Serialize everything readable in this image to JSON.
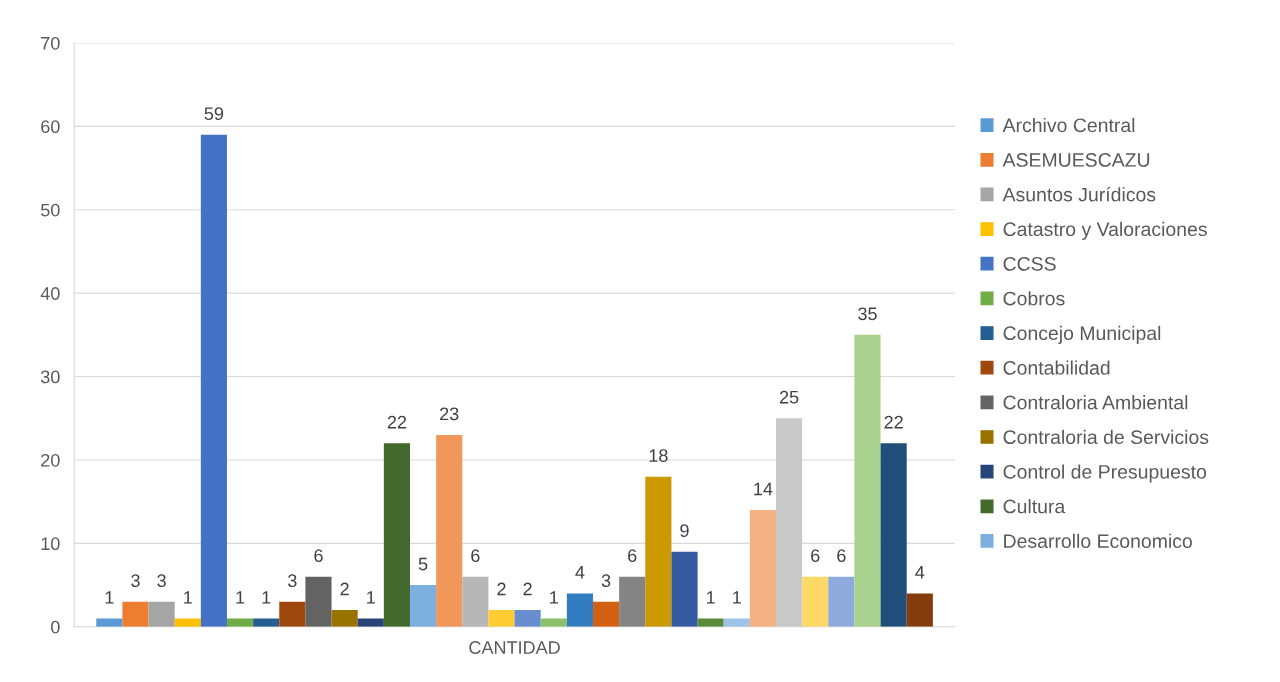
{
  "chart_data": {
    "type": "bar",
    "categories": [
      "CANTIDAD"
    ],
    "ylim": [
      0,
      70
    ],
    "yticks": [
      0,
      10,
      20,
      30,
      40,
      50,
      60,
      70
    ],
    "grid": "y",
    "legend": "right",
    "data_labels": true,
    "series": [
      {
        "name": "Archivo Central",
        "color": "#5b9bd5",
        "values": [
          1
        ]
      },
      {
        "name": "ASEMUESCAZU",
        "color": "#ed7d31",
        "values": [
          3
        ]
      },
      {
        "name": "Asuntos Jurídicos",
        "color": "#a5a5a5",
        "values": [
          3
        ]
      },
      {
        "name": "Catastro y Valoraciones",
        "color": "#ffc000",
        "values": [
          1
        ]
      },
      {
        "name": "CCSS",
        "color": "#4472c4",
        "values": [
          59
        ]
      },
      {
        "name": "Cobros",
        "color": "#70ad47",
        "values": [
          1
        ]
      },
      {
        "name": "Concejo Municipal",
        "color": "#255e91",
        "values": [
          1
        ]
      },
      {
        "name": "Contabilidad",
        "color": "#9e480e",
        "values": [
          3
        ]
      },
      {
        "name": "Contraloria Ambiental",
        "color": "#636363",
        "values": [
          6
        ]
      },
      {
        "name": "Contraloria de Servicios",
        "color": "#997300",
        "values": [
          2
        ]
      },
      {
        "name": "Control de Presupuesto",
        "color": "#264478",
        "values": [
          1
        ]
      },
      {
        "name": "Cultura",
        "color": "#43682b",
        "values": [
          22
        ]
      },
      {
        "name": "Desarrollo Economico",
        "color": "#7cafdd",
        "values": [
          5
        ]
      },
      {
        "color": "#f1975a",
        "values": [
          23
        ]
      },
      {
        "color": "#b7b7b7",
        "values": [
          6
        ]
      },
      {
        "color": "#ffcd33",
        "values": [
          2
        ]
      },
      {
        "color": "#698ed0",
        "values": [
          2
        ]
      },
      {
        "color": "#8cc168",
        "values": [
          1
        ]
      },
      {
        "color": "#327dc2",
        "values": [
          4
        ]
      },
      {
        "color": "#d26012",
        "values": [
          3
        ]
      },
      {
        "color": "#848484",
        "values": [
          6
        ]
      },
      {
        "color": "#cc9a00",
        "values": [
          18
        ]
      },
      {
        "color": "#335aa1",
        "values": [
          9
        ]
      },
      {
        "color": "#5a8a39",
        "values": [
          1
        ]
      },
      {
        "color": "#9dc3e6",
        "values": [
          1
        ]
      },
      {
        "color": "#f4b183",
        "values": [
          14
        ]
      },
      {
        "color": "#c9c9c9",
        "values": [
          25
        ]
      },
      {
        "color": "#ffd966",
        "values": [
          6
        ]
      },
      {
        "color": "#8faadc",
        "values": [
          6
        ]
      },
      {
        "color": "#a9d18e",
        "values": [
          35
        ]
      },
      {
        "color": "#1f4e79",
        "values": [
          22
        ]
      },
      {
        "color": "#843c0c",
        "values": [
          4
        ]
      }
    ]
  }
}
